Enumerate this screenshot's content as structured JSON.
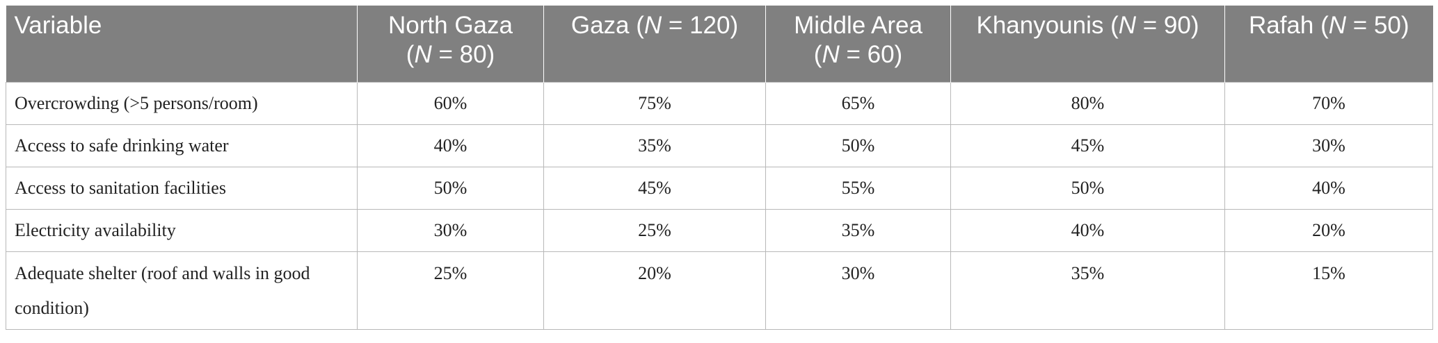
{
  "table": {
    "headers": [
      {
        "label": "Variable",
        "n_label": "",
        "n_value": ""
      },
      {
        "label": "North Gaza",
        "n_label": "N",
        "n_value": " = 80)"
      },
      {
        "label": "Gaza (",
        "n_label": "N",
        "n_value": " = 120)"
      },
      {
        "label": "Middle Area",
        "n_label": "N",
        "n_value": " = 60)"
      },
      {
        "label": "Khanyounis (",
        "n_label": "N",
        "n_value": " = 90)"
      },
      {
        "label": "Rafah (",
        "n_label": "N",
        "n_value": " = 50)"
      }
    ],
    "rows": [
      {
        "variable": "Overcrowding (>5 persons/room)",
        "values": [
          "60%",
          "75%",
          "65%",
          "80%",
          "70%"
        ]
      },
      {
        "variable": "Access to safe drinking water",
        "values": [
          "40%",
          "35%",
          "50%",
          "45%",
          "30%"
        ]
      },
      {
        "variable": "Access to sanitation facilities",
        "values": [
          "50%",
          "45%",
          "55%",
          "50%",
          "40%"
        ]
      },
      {
        "variable": "Electricity availability",
        "values": [
          "30%",
          "25%",
          "35%",
          "40%",
          "20%"
        ]
      },
      {
        "variable": "Adequate shelter (roof and walls in good condition)",
        "values": [
          "25%",
          "20%",
          "30%",
          "35%",
          "15%"
        ]
      }
    ]
  }
}
